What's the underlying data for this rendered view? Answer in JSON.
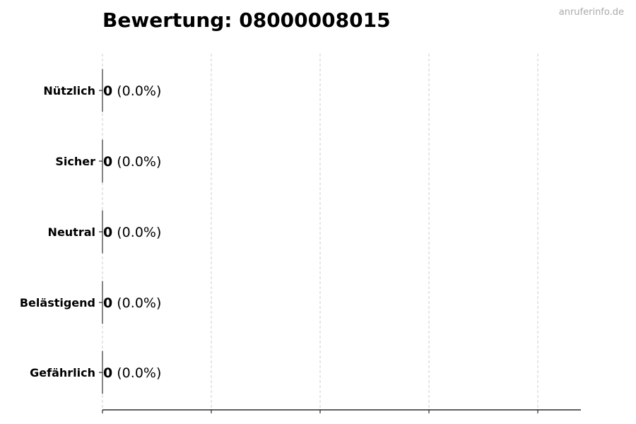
{
  "title": "Bewertung: 08000008015",
  "watermark": "anruferinfo.de",
  "chart_data": {
    "type": "bar",
    "orientation": "horizontal",
    "title": "Bewertung: 08000008015",
    "categories": [
      "Nützlich",
      "Sicher",
      "Neutral",
      "Belästigend",
      "Gefährlich"
    ],
    "values": [
      0,
      0,
      0,
      0,
      0
    ],
    "labels": [
      {
        "value": "0",
        "percent": "(0.0%)"
      },
      {
        "value": "0",
        "percent": "(0.0%)"
      },
      {
        "value": "0",
        "percent": "(0.0%)"
      },
      {
        "value": "0",
        "percent": "(0.0%)"
      },
      {
        "value": "0",
        "percent": "(0.0%)"
      }
    ],
    "xlabel": "",
    "ylabel": "",
    "x_tick_labels_shown": false,
    "grid": "x-dashed",
    "bar_edge_color": "#000000",
    "grid_color": "#cccccc"
  }
}
